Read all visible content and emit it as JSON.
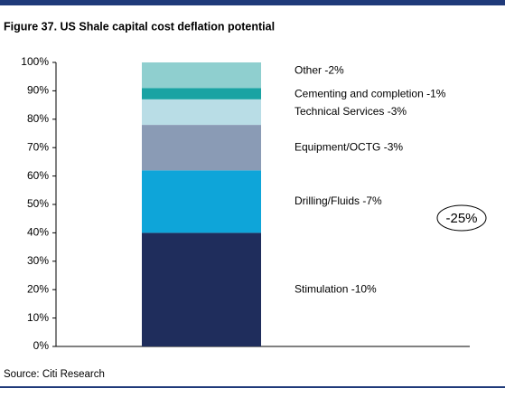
{
  "chart_data": {
    "type": "stacked-bar",
    "title": "Figure 37. US Shale capital cost deflation potential",
    "source": "Source: Citi Research",
    "annotation": "-25%",
    "categories": [
      null
    ],
    "series": [
      {
        "name": "Stimulation -10%",
        "color": "#1f2d5c",
        "values": [
          40
        ]
      },
      {
        "name": "Drilling/Fluids -7%",
        "color": "#0ea5d9",
        "values": [
          22
        ]
      },
      {
        "name": "Equipment/OCTG -3%",
        "color": "#8a9bb5",
        "values": [
          16
        ]
      },
      {
        "name": "Technical Services -3%",
        "color": "#b9dde6",
        "values": [
          9
        ]
      },
      {
        "name": "Cementing and completion -1%",
        "color": "#1aa3a3",
        "values": [
          4
        ]
      },
      {
        "name": "Other -2%",
        "color": "#8fcfcf",
        "values": [
          9
        ]
      }
    ],
    "ylim": [
      0,
      100
    ],
    "yticks": [
      {
        "value": 0,
        "label": "0%"
      },
      {
        "value": 10,
        "label": "10%"
      },
      {
        "value": 20,
        "label": "20%"
      },
      {
        "value": 30,
        "label": "30%"
      },
      {
        "value": 40,
        "label": "40%"
      },
      {
        "value": 50,
        "label": "50%"
      },
      {
        "value": 60,
        "label": "60%"
      },
      {
        "value": 70,
        "label": "70%"
      },
      {
        "value": 80,
        "label": "80%"
      },
      {
        "value": 90,
        "label": "90%"
      },
      {
        "value": 100,
        "label": "100%"
      }
    ]
  }
}
